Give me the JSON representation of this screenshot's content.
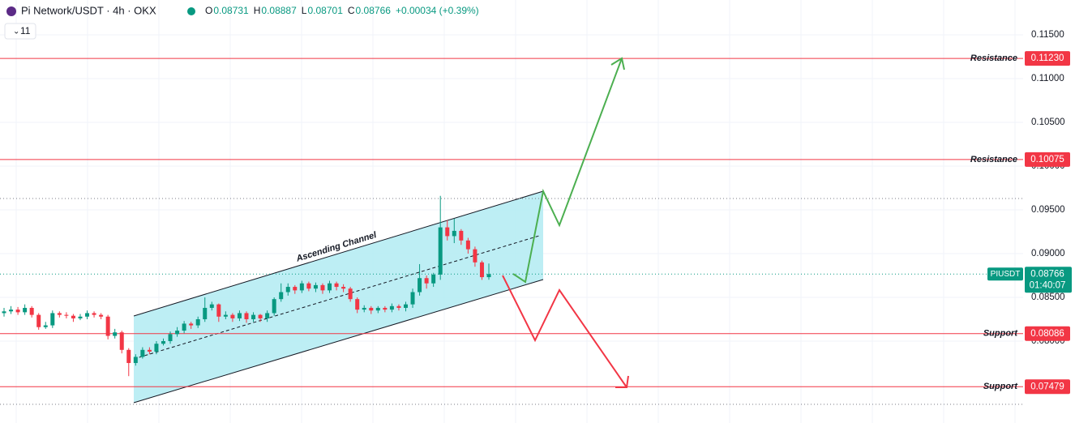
{
  "chart_data": {
    "type": "candlestick",
    "header": {
      "title": "Pi Network/USDT · 4h · OKX",
      "ohlc": [
        {
          "key": "O",
          "value": 0.08731
        },
        {
          "key": "H",
          "value": 0.08887
        },
        {
          "key": "L",
          "value": 0.08701
        },
        {
          "key": "C",
          "value": 0.08766
        }
      ],
      "change": "+0.00034 (+0.39%)",
      "indicators": "11"
    },
    "annotation": "Ascending Channel",
    "up_color": "#089981",
    "down_color": "#f23645",
    "ylim": [
      0.07065,
      0.11898
    ],
    "yticks": [
      {
        "value": 0.115,
        "label": "0.11500"
      },
      {
        "value": 0.11,
        "label": "0.11000"
      },
      {
        "value": 0.105,
        "label": "0.10500"
      },
      {
        "value": 0.1,
        "label": "0.10000"
      },
      {
        "value": 0.095,
        "label": "0.09500"
      },
      {
        "value": 0.09,
        "label": "0.09000"
      },
      {
        "value": 0.085,
        "label": "0.08500"
      },
      {
        "value": 0.08,
        "label": "0.08000"
      }
    ],
    "grid": true,
    "levels": [
      {
        "name": "Resistance",
        "price": {
          "value": 0.1123,
          "label": "0.11230"
        }
      },
      {
        "name": "Resistance",
        "price": {
          "value": 0.10075,
          "label": "0.10075"
        }
      },
      {
        "name": "Support",
        "price": {
          "value": 0.08086,
          "label": "0.08086"
        }
      },
      {
        "name": "Support",
        "price": {
          "value": 0.07479,
          "label": "0.07479"
        }
      }
    ],
    "last": {
      "symbol": "PIUSDT",
      "price": {
        "value": 0.08766,
        "label": "0.08766"
      },
      "countdown": "01:40:07"
    },
    "open": [
      0.0832,
      0.0834,
      0.0836,
      0.0833,
      0.0838,
      0.083,
      0.0816,
      0.0818,
      0.0832,
      0.083,
      0.0829,
      0.0826,
      0.0828,
      0.0832,
      0.083,
      0.0828,
      0.0806,
      0.081,
      0.079,
      0.0775,
      0.0782,
      0.079,
      0.0788,
      0.0797,
      0.08,
      0.0808,
      0.0812,
      0.082,
      0.0818,
      0.0825,
      0.0838,
      0.0842,
      0.0828,
      0.083,
      0.0826,
      0.0832,
      0.0825,
      0.083,
      0.0826,
      0.0832,
      0.0848,
      0.0856,
      0.0862,
      0.0858,
      0.0866,
      0.086,
      0.0864,
      0.0858,
      0.0866,
      0.0862,
      0.086,
      0.0848,
      0.0836,
      0.0838,
      0.0835,
      0.0838,
      0.0836,
      0.084,
      0.0838,
      0.0842,
      0.0856,
      0.0872,
      0.0866,
      0.0876,
      0.093,
      0.092,
      0.0926,
      0.0915,
      0.0905,
      0.089,
      0.08731
    ],
    "high": [
      0.0838,
      0.084,
      0.0839,
      0.0842,
      0.084,
      0.0832,
      0.0822,
      0.0835,
      0.0834,
      0.0833,
      0.0831,
      0.0831,
      0.0835,
      0.0834,
      0.0832,
      0.083,
      0.0814,
      0.0812,
      0.0792,
      0.0785,
      0.0793,
      0.0793,
      0.08,
      0.0803,
      0.0811,
      0.0816,
      0.0823,
      0.0822,
      0.0828,
      0.085,
      0.0845,
      0.0843,
      0.0834,
      0.0832,
      0.0835,
      0.0834,
      0.0833,
      0.0831,
      0.0835,
      0.085,
      0.0866,
      0.0866,
      0.0864,
      0.0869,
      0.0868,
      0.0867,
      0.0866,
      0.0869,
      0.0868,
      0.0865,
      0.0862,
      0.085,
      0.0841,
      0.084,
      0.084,
      0.084,
      0.0843,
      0.0842,
      0.0845,
      0.086,
      0.0888,
      0.0875,
      0.0878,
      0.0966,
      0.0938,
      0.094,
      0.0928,
      0.0918,
      0.0908,
      0.0892,
      0.08887
    ],
    "low": [
      0.0828,
      0.0831,
      0.083,
      0.083,
      0.0827,
      0.0813,
      0.0814,
      0.0815,
      0.0827,
      0.0826,
      0.0822,
      0.0824,
      0.0825,
      0.0827,
      0.0825,
      0.0802,
      0.0803,
      0.0786,
      0.076,
      0.0772,
      0.078,
      0.0785,
      0.0785,
      0.0795,
      0.0797,
      0.0805,
      0.0809,
      0.0814,
      0.0815,
      0.0822,
      0.0835,
      0.0822,
      0.0825,
      0.0822,
      0.0823,
      0.0821,
      0.0822,
      0.0822,
      0.0822,
      0.0829,
      0.0845,
      0.0852,
      0.0854,
      0.0855,
      0.0857,
      0.0856,
      0.0854,
      0.0855,
      0.0858,
      0.0856,
      0.0845,
      0.0832,
      0.0833,
      0.0831,
      0.0832,
      0.0833,
      0.0833,
      0.0835,
      0.0834,
      0.0838,
      0.0852,
      0.086,
      0.0862,
      0.087,
      0.0915,
      0.0912,
      0.091,
      0.09,
      0.0885,
      0.087,
      0.08701
    ],
    "close": [
      0.0834,
      0.0836,
      0.0833,
      0.0838,
      0.083,
      0.0816,
      0.0818,
      0.0832,
      0.083,
      0.0829,
      0.0826,
      0.0828,
      0.0832,
      0.083,
      0.0828,
      0.0806,
      0.081,
      0.079,
      0.0775,
      0.0782,
      0.079,
      0.0788,
      0.0797,
      0.08,
      0.0808,
      0.0812,
      0.082,
      0.0818,
      0.0825,
      0.0838,
      0.0842,
      0.0828,
      0.083,
      0.0826,
      0.0832,
      0.0825,
      0.083,
      0.0826,
      0.0832,
      0.0848,
      0.0856,
      0.0862,
      0.0858,
      0.0866,
      0.086,
      0.0864,
      0.0858,
      0.0866,
      0.0862,
      0.086,
      0.0848,
      0.0836,
      0.0838,
      0.0835,
      0.0838,
      0.0836,
      0.084,
      0.0838,
      0.0842,
      0.0856,
      0.0872,
      0.0866,
      0.0876,
      0.093,
      0.092,
      0.0926,
      0.0915,
      0.0905,
      0.089,
      0.08731,
      0.08766
    ]
  }
}
